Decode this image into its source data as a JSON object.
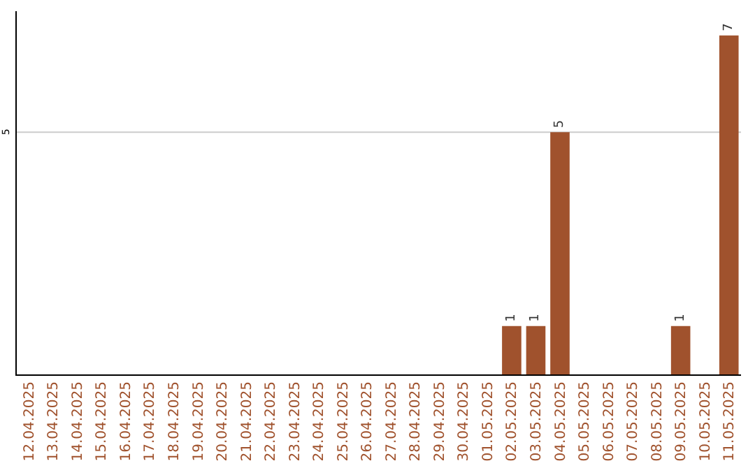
{
  "chart_data": {
    "type": "bar",
    "categories": [
      "12.04.2025",
      "13.04.2025",
      "14.04.2025",
      "15.04.2025",
      "16.04.2025",
      "17.04.2025",
      "18.04.2025",
      "19.04.2025",
      "20.04.2025",
      "21.04.2025",
      "22.04.2025",
      "23.04.2025",
      "24.04.2025",
      "25.04.2025",
      "26.04.2025",
      "27.04.2025",
      "28.04.2025",
      "29.04.2025",
      "30.04.2025",
      "01.05.2025",
      "02.05.2025",
      "03.05.2025",
      "04.05.2025",
      "05.05.2025",
      "06.05.2025",
      "07.05.2025",
      "08.05.2025",
      "09.05.2025",
      "10.05.2025",
      "11.05.2025"
    ],
    "values": [
      null,
      null,
      null,
      null,
      null,
      null,
      null,
      null,
      null,
      null,
      null,
      null,
      null,
      null,
      null,
      null,
      null,
      null,
      null,
      null,
      1,
      1,
      5,
      null,
      null,
      null,
      null,
      1,
      null,
      7
    ],
    "data_labels": true,
    "color": "#a0522d",
    "ylim": [
      0,
      7.5
    ],
    "ref_lines": [
      {
        "axis": "y",
        "value": 5,
        "label": "5",
        "color": "#cccccc"
      }
    ]
  }
}
